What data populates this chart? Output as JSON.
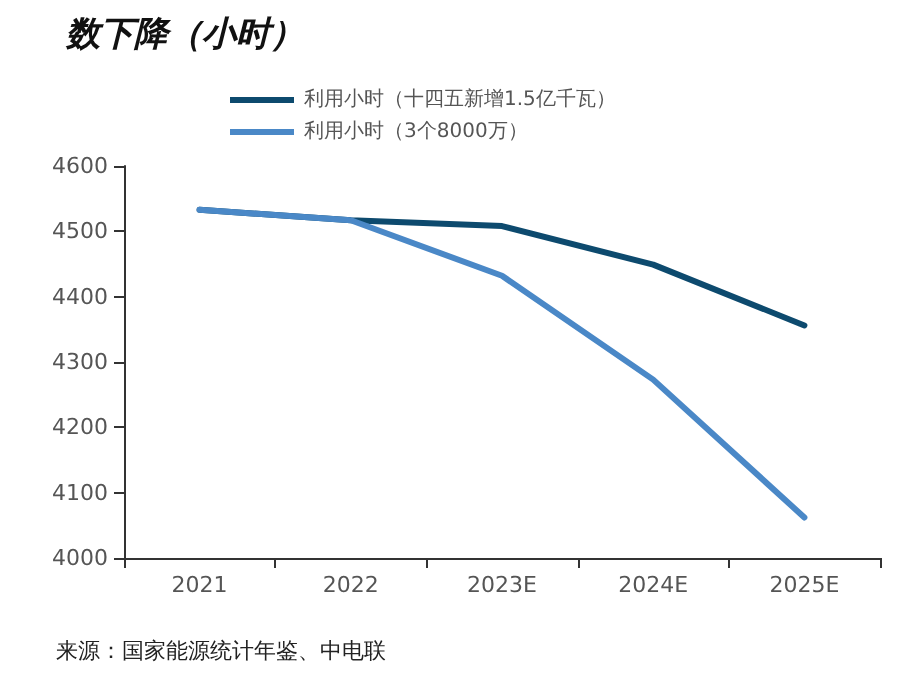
{
  "chart_data": {
    "type": "line",
    "title": "数下降（小时）",
    "categories": [
      "2021",
      "2022",
      "2023E",
      "2024E",
      "2025E"
    ],
    "series": [
      {
        "name": "利用小时（十四五新增1.5亿千瓦）",
        "color": "#0d4a6e",
        "values": [
          4533,
          4517,
          4508,
          4449,
          4356
        ]
      },
      {
        "name": "利用小时（3个8000万）",
        "color": "#4a88c7",
        "values": [
          4533,
          4517,
          4432,
          4273,
          4062
        ]
      }
    ],
    "ylim": [
      4000,
      4600
    ],
    "yticks": [
      4000,
      4100,
      4200,
      4300,
      4400,
      4500,
      4600
    ],
    "grid": false,
    "legend": "top left",
    "marker": "none",
    "line_style": "solid",
    "annotations": [
      "来源：国家能源统计年鉴、中电联"
    ]
  }
}
